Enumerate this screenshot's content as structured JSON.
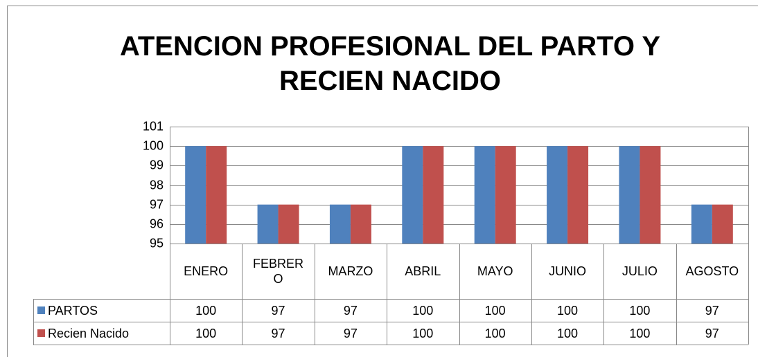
{
  "chart_data": {
    "type": "bar",
    "title": "ATENCION PROFESIONAL DEL PARTO Y RECIEN NACIDO",
    "categories": [
      "ENERO",
      "FEBRERO",
      "MARZO",
      "ABRIL",
      "MAYO",
      "JUNIO",
      "JULIO",
      "AGOSTO"
    ],
    "series": [
      {
        "name": "PARTOS",
        "color": "#4f81bd",
        "values": [
          100,
          97,
          97,
          100,
          100,
          100,
          100,
          97
        ]
      },
      {
        "name": "Recien Nacido",
        "color": "#c0504d",
        "values": [
          100,
          97,
          97,
          100,
          100,
          100,
          100,
          97
        ]
      }
    ],
    "ylim": [
      95,
      101
    ],
    "yticks": [
      95,
      96,
      97,
      98,
      99,
      100,
      101
    ],
    "grid": true,
    "data_table": true
  }
}
